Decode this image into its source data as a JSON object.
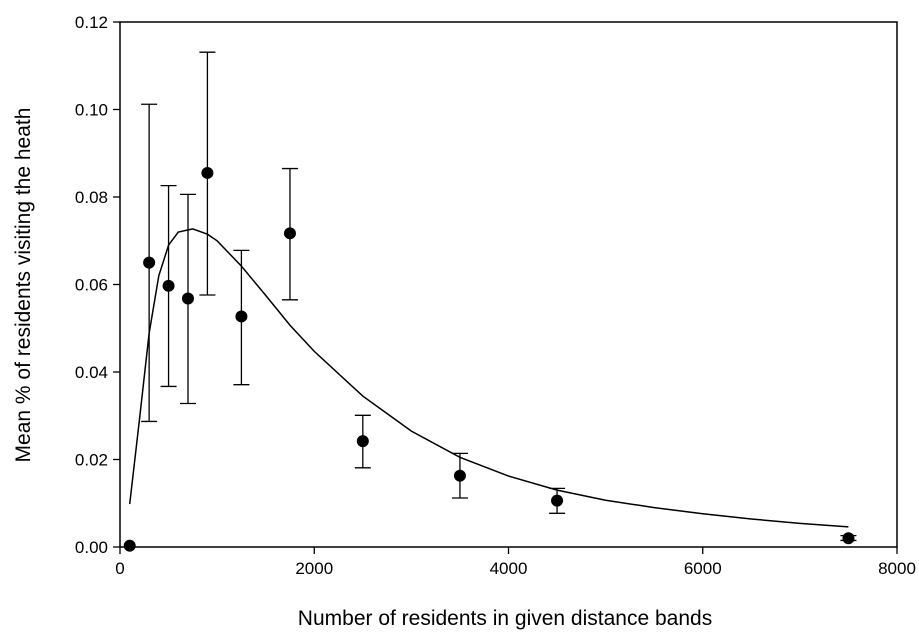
{
  "chart_data": {
    "type": "scatter",
    "xlabel": "Number of residents in given distance bands",
    "ylabel": "Mean % of residents visiting the heath",
    "xlim": [
      0,
      8000
    ],
    "ylim": [
      0,
      0.12
    ],
    "x_ticks": [
      0,
      2000,
      4000,
      6000,
      8000
    ],
    "x_tick_labels": [
      "0",
      "2000",
      "4000",
      "6000",
      "8000"
    ],
    "y_ticks": [
      0,
      0.02,
      0.04,
      0.06,
      0.08,
      0.1,
      0.12
    ],
    "y_tick_labels": [
      "0.00",
      "0.02",
      "0.04",
      "0.06",
      "0.08",
      "0.10",
      "0.12"
    ],
    "grid": false,
    "legend": "none",
    "points": [
      {
        "x": 100,
        "y": 0.0003,
        "err_low": null,
        "err_high": null
      },
      {
        "x": 300,
        "y": 0.065,
        "err_low": 0.0287,
        "err_high": 0.1012
      },
      {
        "x": 500,
        "y": 0.0597,
        "err_low": 0.0367,
        "err_high": 0.0826
      },
      {
        "x": 700,
        "y": 0.0568,
        "err_low": 0.0328,
        "err_high": 0.0806
      },
      {
        "x": 900,
        "y": 0.0855,
        "err_low": 0.0576,
        "err_high": 0.1131
      },
      {
        "x": 1250,
        "y": 0.0527,
        "err_low": 0.0371,
        "err_high": 0.0678
      },
      {
        "x": 1750,
        "y": 0.0717,
        "err_low": 0.0565,
        "err_high": 0.0865
      },
      {
        "x": 2500,
        "y": 0.0242,
        "err_low": 0.0181,
        "err_high": 0.0301
      },
      {
        "x": 3500,
        "y": 0.0163,
        "err_low": 0.0112,
        "err_high": 0.0214
      },
      {
        "x": 4500,
        "y": 0.0106,
        "err_low": 0.0077,
        "err_high": 0.0134
      },
      {
        "x": 7500,
        "y": 0.002,
        "err_low": 0.0015,
        "err_high": 0.0026
      }
    ],
    "fit_curve": {
      "type": "line",
      "x": [
        100,
        200,
        300,
        400,
        500,
        600,
        750,
        900,
        1000,
        1250,
        1500,
        1750,
        2000,
        2500,
        3000,
        3500,
        4000,
        4500,
        5000,
        5500,
        6000,
        6500,
        7000,
        7500
      ],
      "y": [
        0.0098,
        0.029,
        0.0488,
        0.062,
        0.069,
        0.072,
        0.0727,
        0.0715,
        0.07,
        0.0642,
        0.0575,
        0.0507,
        0.0447,
        0.0345,
        0.0265,
        0.0205,
        0.0162,
        0.013,
        0.0107,
        0.009,
        0.0076,
        0.0064,
        0.0054,
        0.0046
      ]
    }
  }
}
